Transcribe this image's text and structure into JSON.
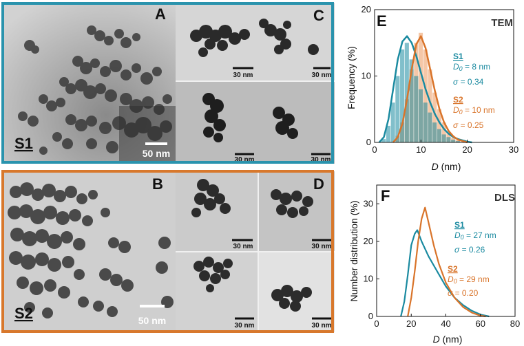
{
  "colors": {
    "s1": "#1a8aa0",
    "s2": "#d9742a",
    "s1_frame": "#2a93ad",
    "s2_frame": "#d8782c"
  },
  "tem_panels": {
    "A": {
      "letter": "A",
      "scale": "50 nm",
      "sample": "S1"
    },
    "B": {
      "letter": "B",
      "scale": "50 nm",
      "sample": "S2"
    },
    "C": {
      "letter": "C",
      "scale_top": "30 nm",
      "scale_bottom": "30 nm",
      "scale_right": "30 nm"
    },
    "D": {
      "letter": "D",
      "scale_1": "30 nm",
      "scale_2": "30 nm",
      "scale_3": "30 nm",
      "scale_4": "30 nm"
    }
  },
  "chart_data": [
    {
      "type": "bar",
      "panel": "E",
      "method": "TEM",
      "xlabel_var": "D",
      "xlabel_unit": " (nm)",
      "ylabel": "Frequency (%)",
      "xlim": [
        0,
        30
      ],
      "ylim": [
        0,
        20
      ],
      "xticks": [
        "0",
        "10",
        "20",
        "30"
      ],
      "yticks": [
        "0",
        "10",
        "20"
      ],
      "series": [
        {
          "name": "S1",
          "D0_label": "= 8 nm",
          "sigma_label": "= 0.34",
          "bins": [
            [
              2,
              0.5
            ],
            [
              3,
              2.5
            ],
            [
              4,
              6
            ],
            [
              5,
              10
            ],
            [
              6,
              14
            ],
            [
              7,
              15
            ],
            [
              8,
              12.5
            ],
            [
              9,
              10
            ],
            [
              10,
              8
            ],
            [
              11,
              6
            ],
            [
              12,
              4.5
            ],
            [
              13,
              3
            ],
            [
              14,
              2
            ],
            [
              15,
              1.2
            ],
            [
              16,
              0.8
            ],
            [
              17,
              0.4
            ],
            [
              18,
              0.2
            ]
          ],
          "fit": [
            [
              1,
              0
            ],
            [
              2,
              0.8
            ],
            [
              3,
              3.5
            ],
            [
              4,
              8
            ],
            [
              5,
              12.5
            ],
            [
              6,
              15.2
            ],
            [
              7,
              16
            ],
            [
              8,
              15
            ],
            [
              9,
              13
            ],
            [
              10,
              10.5
            ],
            [
              11,
              8
            ],
            [
              12,
              6
            ],
            [
              13,
              4.3
            ],
            [
              14,
              3
            ],
            [
              15,
              2
            ],
            [
              16,
              1.3
            ],
            [
              17,
              0.8
            ],
            [
              18,
              0.5
            ],
            [
              19,
              0.3
            ],
            [
              20,
              0.1
            ],
            [
              21,
              0
            ]
          ]
        },
        {
          "name": "S2",
          "D0_label": "= 10 nm",
          "sigma_label": "= 0.25",
          "bins": [
            [
              5,
              1
            ],
            [
              6,
              3
            ],
            [
              7,
              6.5
            ],
            [
              8,
              11
            ],
            [
              9,
              15
            ],
            [
              10,
              16.5
            ],
            [
              11,
              14
            ],
            [
              12,
              11
            ],
            [
              13,
              7.5
            ],
            [
              14,
              5
            ],
            [
              15,
              3
            ],
            [
              16,
              1.5
            ],
            [
              17,
              0.7
            ],
            [
              18,
              0.3
            ]
          ],
          "fit": [
            [
              4,
              0
            ],
            [
              5,
              0.8
            ],
            [
              6,
              2.8
            ],
            [
              7,
              6.5
            ],
            [
              8,
              11
            ],
            [
              9,
              14.8
            ],
            [
              10,
              16
            ],
            [
              11,
              14.2
            ],
            [
              12,
              11
            ],
            [
              13,
              7.8
            ],
            [
              14,
              5
            ],
            [
              15,
              3
            ],
            [
              16,
              1.7
            ],
            [
              17,
              0.9
            ],
            [
              18,
              0.4
            ],
            [
              19,
              0.2
            ],
            [
              20,
              0
            ]
          ]
        }
      ]
    },
    {
      "type": "line",
      "panel": "F",
      "method": "DLS",
      "xlabel_var": "D",
      "xlabel_unit": " (nm)",
      "ylabel": "Number distribution (%)",
      "xlim": [
        0,
        80
      ],
      "ylim": [
        0,
        35
      ],
      "xticks": [
        "0",
        "20",
        "40",
        "60",
        "80"
      ],
      "yticks": [
        "0",
        "10",
        "20",
        "30"
      ],
      "series": [
        {
          "name": "S1",
          "D0_label": "= 27 nm",
          "sigma_label": "= 0.26",
          "points": [
            [
              14,
              0
            ],
            [
              16,
              4
            ],
            [
              18,
              11
            ],
            [
              20,
              19
            ],
            [
              22,
              22
            ],
            [
              23.5,
              23
            ],
            [
              26,
              20
            ],
            [
              30,
              16
            ],
            [
              35,
              12
            ],
            [
              40,
              8
            ],
            [
              45,
              5
            ],
            [
              50,
              3
            ],
            [
              55,
              1.5
            ],
            [
              60,
              0.5
            ],
            [
              65,
              0
            ]
          ]
        },
        {
          "name": "S2",
          "D0_label": "= 29 nm",
          "sigma_label": "= 0.20",
          "points": [
            [
              18,
              0
            ],
            [
              20,
              5
            ],
            [
              22,
              12
            ],
            [
              24,
              20
            ],
            [
              26,
              26
            ],
            [
              28,
              29
            ],
            [
              30,
              25
            ],
            [
              33,
              19
            ],
            [
              36,
              14
            ],
            [
              40,
              9
            ],
            [
              45,
              5
            ],
            [
              50,
              2.5
            ],
            [
              55,
              1
            ],
            [
              60,
              0.2
            ],
            [
              63,
              0
            ]
          ]
        }
      ]
    }
  ]
}
